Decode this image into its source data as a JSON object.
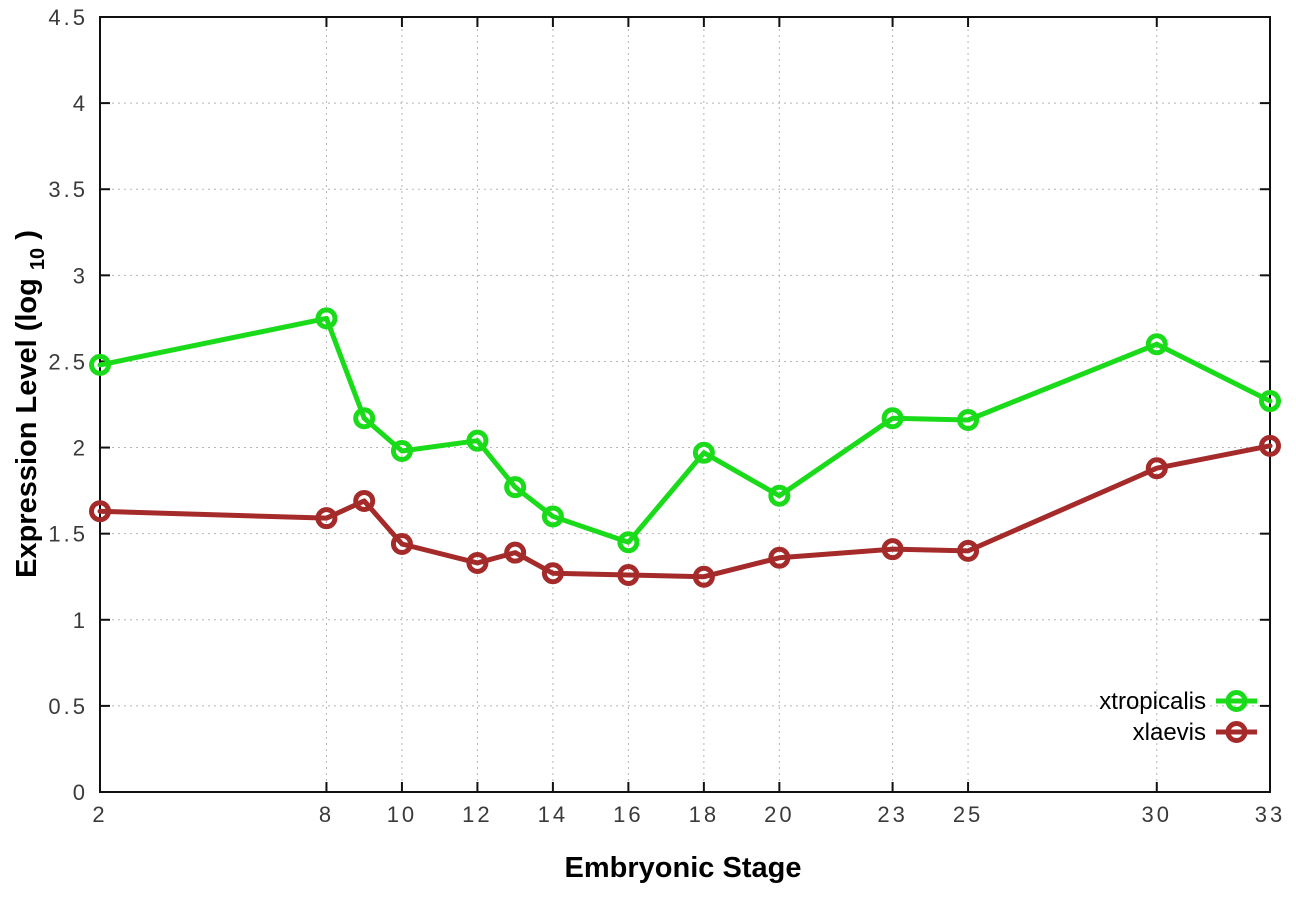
{
  "figure": {
    "background_color": "#ffffff"
  },
  "chart_data": {
    "type": "line",
    "xlabel": "Embryonic Stage",
    "ylabel": "Expression Level (log10)",
    "ylabel_parts": {
      "main": "Expression Level (log",
      "sub": "10",
      "suffix": ")"
    },
    "x": [
      2,
      8,
      9,
      10,
      12,
      13,
      14,
      16,
      18,
      20,
      23,
      25,
      30,
      33
    ],
    "series": [
      {
        "name": "xtropicalis",
        "color": "#1adb1a",
        "values": [
          2.48,
          2.75,
          2.17,
          1.98,
          2.04,
          1.77,
          1.6,
          1.45,
          1.97,
          1.72,
          2.17,
          2.16,
          2.6,
          2.27
        ]
      },
      {
        "name": "xlaevis",
        "color": "#a52a2a",
        "values": [
          1.63,
          1.59,
          1.69,
          1.44,
          1.33,
          1.39,
          1.27,
          1.26,
          1.25,
          1.36,
          1.41,
          1.4,
          1.88,
          2.01
        ]
      }
    ],
    "xticks": [
      2,
      8,
      10,
      12,
      14,
      16,
      18,
      20,
      23,
      25,
      30,
      33
    ],
    "yticks": [
      0,
      0.5,
      1,
      1.5,
      2,
      2.5,
      3,
      3.5,
      4,
      4.5
    ],
    "xlim": [
      2,
      33
    ],
    "ylim": [
      0,
      4.5
    ],
    "grid": true,
    "marker": "open-circle",
    "legend_position": "bottom-right"
  }
}
